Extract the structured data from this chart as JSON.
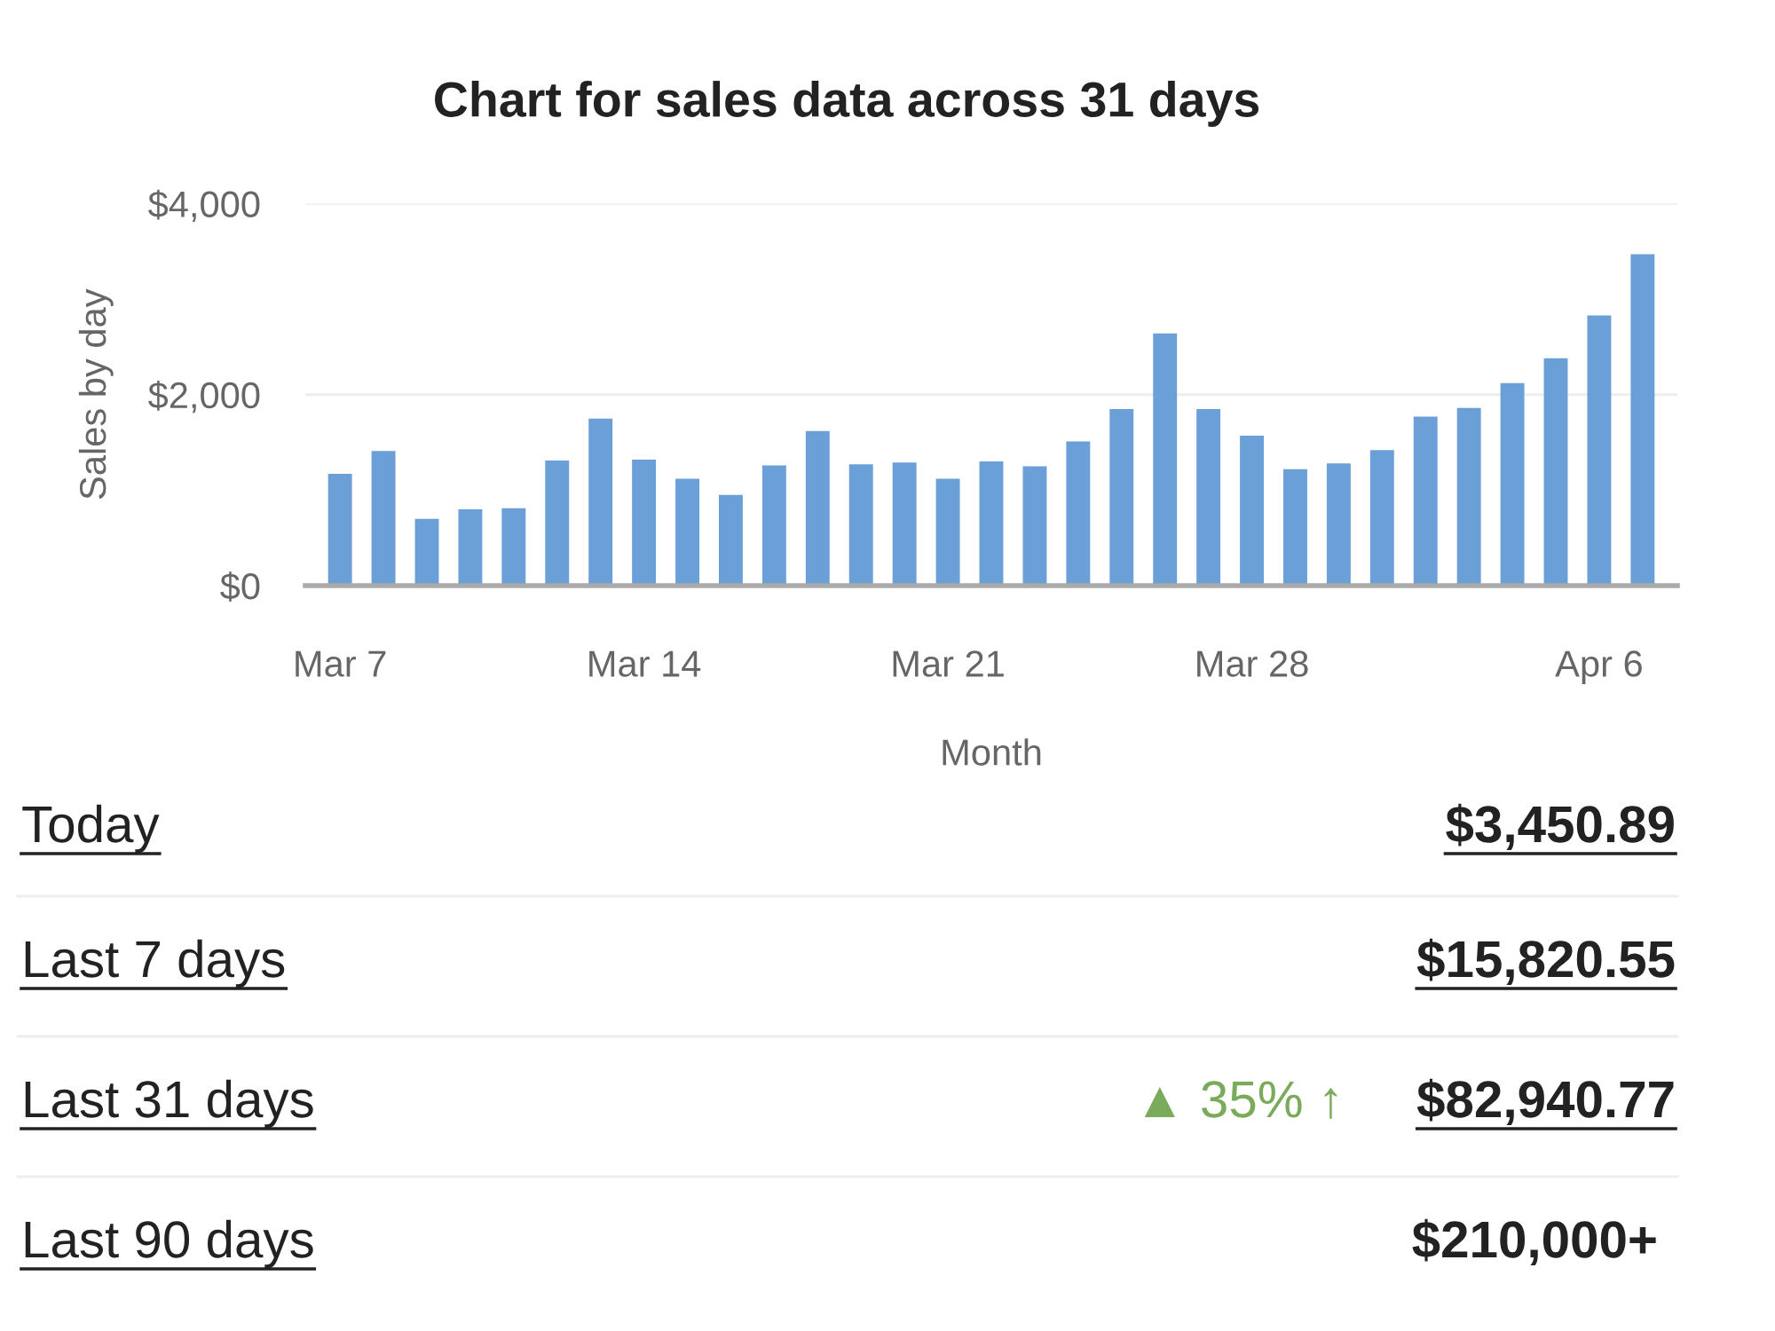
{
  "chart_data": [
    {
      "type": "bar",
      "title": "Chart for sales data across 31 days",
      "xlabel": "Month",
      "ylabel": "Sales by day",
      "categories": [
        "Mar 7",
        null,
        null,
        null,
        null,
        null,
        null,
        "Mar 14",
        null,
        null,
        null,
        null,
        null,
        null,
        "Mar 21",
        null,
        null,
        null,
        null,
        null,
        null,
        "Mar 28",
        null,
        null,
        null,
        null,
        null,
        null,
        null,
        "Apr 6",
        null
      ],
      "values": [
        1170,
        1410,
        700,
        800,
        810,
        1310,
        1750,
        1320,
        1120,
        950,
        1260,
        1620,
        1270,
        1290,
        1120,
        1300,
        1250,
        1510,
        1850,
        2640,
        1850,
        1570,
        1220,
        1280,
        1420,
        1770,
        1860,
        2120,
        2380,
        2830,
        3470
      ],
      "color": "#6a9fd8",
      "ylim": [
        0,
        4000
      ],
      "yticks": [
        {
          "value": 0,
          "label": "$0"
        },
        {
          "value": 2000,
          "label": "$2,000"
        },
        {
          "value": 4000,
          "label": "$4,000"
        }
      ],
      "grid": "y"
    },
    {
      "type": "other",
      "annotations": [
        "Today",
        "$3,450.89",
        "Last 7 days",
        "$15,820.55",
        "Last 31 days",
        "▲ 35% ↑",
        "$82,940.77",
        "Last 90 days",
        "$210,000+"
      ]
    }
  ]
}
